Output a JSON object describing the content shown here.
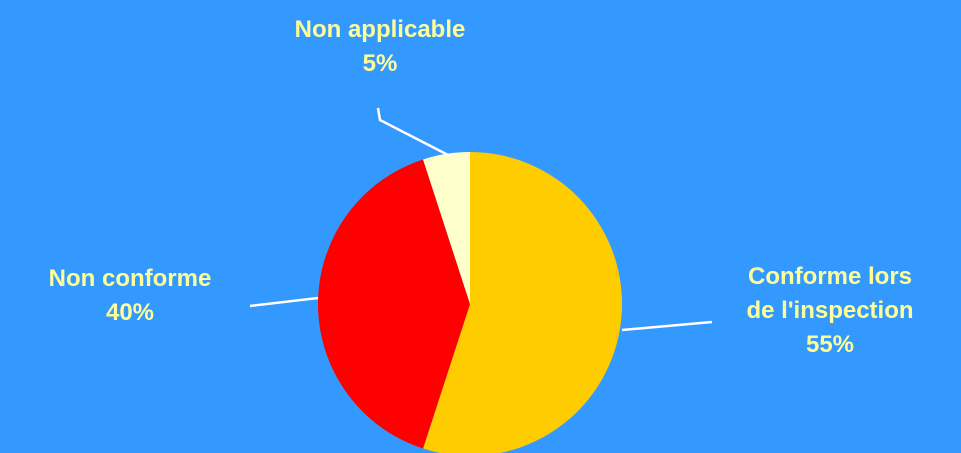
{
  "colors": {
    "background": "#3399ff",
    "label_text": "#ffff99",
    "leader_line": "#ffffff"
  },
  "chart_data": {
    "type": "pie",
    "title": "",
    "slices": [
      {
        "label_lines": [
          "Conforme lors",
          "de l'inspection"
        ],
        "value": 55,
        "value_label": "55%",
        "color": "#ffcc00"
      },
      {
        "label_lines": [
          "Non conforme"
        ],
        "value": 40,
        "value_label": "40%",
        "color": "#ff0000"
      },
      {
        "label_lines": [
          "Non applicable"
        ],
        "value": 5,
        "value_label": "5%",
        "color": "#ffffcc"
      }
    ],
    "start_angle_deg": 0,
    "direction": "clockwise",
    "legend": "none",
    "data_labels": "outside with leader lines"
  }
}
